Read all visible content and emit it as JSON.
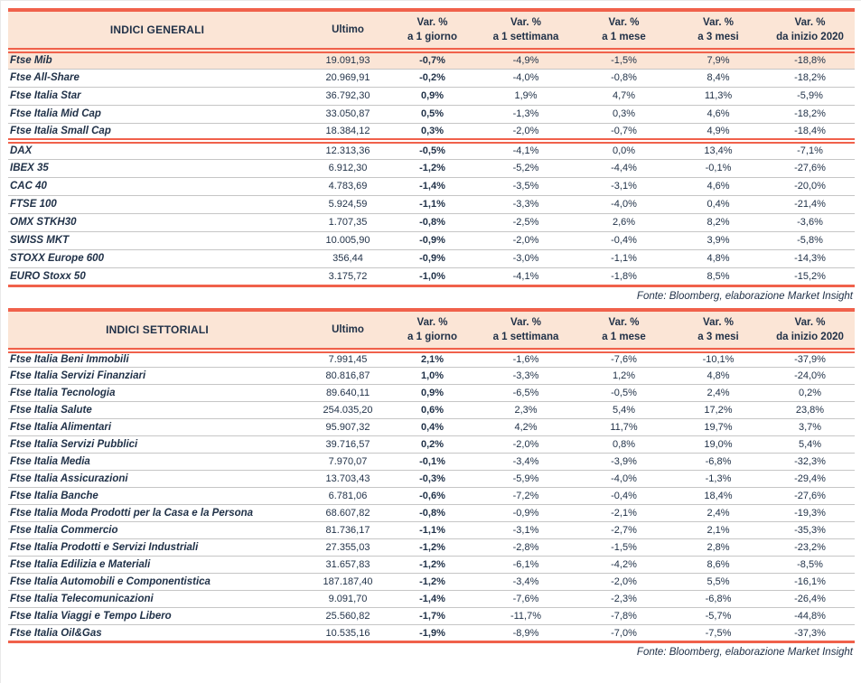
{
  "colors": {
    "accent": "#F0614B",
    "header_bg": "#FBE5D6",
    "text": "#1F3047",
    "row_line": "#C6C6C6"
  },
  "source_note": "Fonte: Bloomberg, elaborazione Market Insight",
  "columns": {
    "ultimo": "Ultimo",
    "var_headers": [
      {
        "line1": "Var. %",
        "line2": "a 1 giorno"
      },
      {
        "line1": "Var. %",
        "line2": "a 1 settimana"
      },
      {
        "line1": "Var. %",
        "line2": "a 1 mese"
      },
      {
        "line1": "Var. %",
        "line2": "a 3 mesi"
      },
      {
        "line1": "Var. %",
        "line2": "da inizio 2020"
      }
    ]
  },
  "tables": [
    {
      "title": "INDICI GENERALI",
      "sections": [
        {
          "rows": [
            {
              "name": "Ftse Mib",
              "highlight": true,
              "values": [
                "19.091,93",
                "-0,7%",
                "-4,9%",
                "-1,5%",
                "7,9%",
                "-18,8%"
              ]
            },
            {
              "name": "Ftse All-Share",
              "values": [
                "20.969,91",
                "-0,2%",
                "-4,0%",
                "-0,8%",
                "8,4%",
                "-18,2%"
              ]
            },
            {
              "name": "Ftse Italia Star",
              "values": [
                "36.792,30",
                "0,9%",
                "1,9%",
                "4,7%",
                "11,3%",
                "-5,9%"
              ]
            },
            {
              "name": "Ftse Italia Mid Cap",
              "values": [
                "33.050,87",
                "0,5%",
                "-1,3%",
                "0,3%",
                "4,6%",
                "-18,2%"
              ]
            },
            {
              "name": "Ftse Italia Small Cap",
              "values": [
                "18.384,12",
                "0,3%",
                "-2,0%",
                "-0,7%",
                "4,9%",
                "-18,4%"
              ]
            }
          ]
        },
        {
          "rows": [
            {
              "name": "DAX",
              "values": [
                "12.313,36",
                "-0,5%",
                "-4,1%",
                "0,0%",
                "13,4%",
                "-7,1%"
              ]
            },
            {
              "name": "IBEX 35",
              "values": [
                "6.912,30",
                "-1,2%",
                "-5,2%",
                "-4,4%",
                "-0,1%",
                "-27,6%"
              ]
            },
            {
              "name": "CAC 40",
              "values": [
                "4.783,69",
                "-1,4%",
                "-3,5%",
                "-3,1%",
                "4,6%",
                "-20,0%"
              ]
            },
            {
              "name": "FTSE 100",
              "values": [
                "5.924,59",
                "-1,1%",
                "-3,3%",
                "-4,0%",
                "0,4%",
                "-21,4%"
              ]
            },
            {
              "name": "OMX STKH30",
              "values": [
                "1.707,35",
                "-0,8%",
                "-2,5%",
                "2,6%",
                "8,2%",
                "-3,6%"
              ]
            },
            {
              "name": "SWISS MKT",
              "values": [
                "10.005,90",
                "-0,9%",
                "-2,0%",
                "-0,4%",
                "3,9%",
                "-5,8%"
              ]
            },
            {
              "name": "STOXX Europe 600",
              "values": [
                "356,44",
                "-0,9%",
                "-3,0%",
                "-1,1%",
                "4,8%",
                "-14,3%"
              ]
            },
            {
              "name": "EURO Stoxx 50",
              "values": [
                "3.175,72",
                "-1,0%",
                "-4,1%",
                "-1,8%",
                "8,5%",
                "-15,2%"
              ]
            }
          ]
        }
      ]
    },
    {
      "title": "INDICI SETTORIALI",
      "sections": [
        {
          "rows": [
            {
              "name": "Ftse Italia Beni Immobili",
              "values": [
                "7.991,45",
                "2,1%",
                "-1,6%",
                "-7,6%",
                "-10,1%",
                "-37,9%"
              ]
            },
            {
              "name": "Ftse Italia Servizi Finanziari",
              "values": [
                "80.816,87",
                "1,0%",
                "-3,3%",
                "1,2%",
                "4,8%",
                "-24,0%"
              ]
            },
            {
              "name": "Ftse Italia Tecnologia",
              "values": [
                "89.640,11",
                "0,9%",
                "-6,5%",
                "-0,5%",
                "2,4%",
                "0,2%"
              ]
            },
            {
              "name": "Ftse Italia Salute",
              "values": [
                "254.035,20",
                "0,6%",
                "2,3%",
                "5,4%",
                "17,2%",
                "23,8%"
              ]
            },
            {
              "name": "Ftse Italia Alimentari",
              "values": [
                "95.907,32",
                "0,4%",
                "4,2%",
                "11,7%",
                "19,7%",
                "3,7%"
              ]
            },
            {
              "name": "Ftse Italia Servizi Pubblici",
              "values": [
                "39.716,57",
                "0,2%",
                "-2,0%",
                "0,8%",
                "19,0%",
                "5,4%"
              ]
            },
            {
              "name": "Ftse Italia Media",
              "values": [
                "7.970,07",
                "-0,1%",
                "-3,4%",
                "-3,9%",
                "-6,8%",
                "-32,3%"
              ]
            },
            {
              "name": "Ftse Italia Assicurazioni",
              "values": [
                "13.703,43",
                "-0,3%",
                "-5,9%",
                "-4,0%",
                "-1,3%",
                "-29,4%"
              ]
            },
            {
              "name": "Ftse Italia Banche",
              "values": [
                "6.781,06",
                "-0,6%",
                "-7,2%",
                "-0,4%",
                "18,4%",
                "-27,6%"
              ]
            },
            {
              "name": "Ftse Italia Moda Prodotti per la Casa e la Persona",
              "values": [
                "68.607,82",
                "-0,8%",
                "-0,9%",
                "-2,1%",
                "2,4%",
                "-19,3%"
              ]
            },
            {
              "name": "Ftse Italia Commercio",
              "values": [
                "81.736,17",
                "-1,1%",
                "-3,1%",
                "-2,7%",
                "2,1%",
                "-35,3%"
              ]
            },
            {
              "name": "Ftse Italia Prodotti e Servizi Industriali",
              "values": [
                "27.355,03",
                "-1,2%",
                "-2,8%",
                "-1,5%",
                "2,8%",
                "-23,2%"
              ]
            },
            {
              "name": "Ftse Italia Edilizia e Materiali",
              "values": [
                "31.657,83",
                "-1,2%",
                "-6,1%",
                "-4,2%",
                "8,6%",
                "-8,5%"
              ]
            },
            {
              "name": "Ftse Italia Automobili e Componentistica",
              "values": [
                "187.187,40",
                "-1,2%",
                "-3,4%",
                "-2,0%",
                "5,5%",
                "-16,1%"
              ]
            },
            {
              "name": "Ftse Italia Telecomunicazioni",
              "values": [
                "9.091,70",
                "-1,4%",
                "-7,6%",
                "-2,3%",
                "-6,8%",
                "-26,4%"
              ]
            },
            {
              "name": "Ftse Italia Viaggi e Tempo Libero",
              "values": [
                "25.560,82",
                "-1,7%",
                "-11,7%",
                "-7,8%",
                "-5,7%",
                "-44,8%"
              ]
            },
            {
              "name": "Ftse Italia Oil&Gas",
              "values": [
                "10.535,16",
                "-1,9%",
                "-8,9%",
                "-7,0%",
                "-7,5%",
                "-37,3%"
              ]
            }
          ]
        }
      ]
    }
  ]
}
